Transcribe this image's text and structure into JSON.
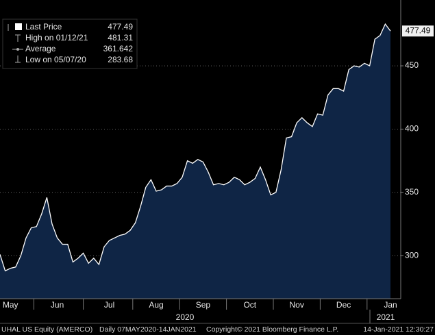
{
  "chart_data": {
    "type": "area",
    "categories": [
      null,
      null,
      "May",
      null,
      null,
      null,
      null,
      null,
      null,
      null,
      null,
      "Jun",
      null,
      null,
      null,
      null,
      null,
      null,
      null,
      null,
      null,
      "Jul",
      null,
      null,
      null,
      null,
      null,
      null,
      null,
      null,
      "Aug",
      null,
      null,
      null,
      null,
      null,
      null,
      null,
      null,
      "Sep",
      null,
      null,
      null,
      null,
      null,
      null,
      null,
      null,
      "Oct",
      null,
      null,
      null,
      null,
      null,
      null,
      null,
      null,
      "Nov",
      null,
      null,
      null,
      null,
      null,
      null,
      null,
      null,
      "Dec",
      null,
      null,
      null,
      null,
      null,
      null,
      null,
      null,
      "Jan"
    ],
    "series": [
      {
        "name": "Last Price",
        "color": "#ffffff",
        "fill": "#0f2545",
        "values": [
          301,
          288,
          290,
          291,
          300,
          314,
          322,
          323,
          333,
          346,
          325,
          314,
          309,
          309,
          295,
          298,
          302,
          294,
          298,
          293,
          307,
          312,
          314,
          316,
          317,
          320,
          326,
          339,
          354,
          360,
          351,
          352,
          355,
          355,
          357,
          362,
          375,
          373,
          376,
          374,
          366,
          356,
          357,
          356,
          358,
          362,
          360,
          356,
          358,
          361,
          370,
          360,
          348,
          350,
          368,
          393,
          394,
          405,
          409,
          405,
          402,
          412,
          411,
          427,
          432,
          432,
          430,
          447,
          450,
          449,
          452,
          450,
          471,
          474,
          483,
          477.49
        ]
      }
    ],
    "ylim": [
      266,
      502
    ],
    "yticks": [
      300,
      350,
      400,
      450
    ],
    "grid": true,
    "years": [
      "2020",
      "2021"
    ]
  },
  "legend": [
    {
      "label": "Last Price",
      "value": "477.49"
    },
    {
      "label": "High on 01/12/21",
      "value": "481.31"
    },
    {
      "label": "Average",
      "value": "361.642"
    },
    {
      "label": "Low on 05/07/20",
      "value": "283.68"
    }
  ],
  "footer": [
    "UHAL US Equity (AMERCO)",
    "Daily 07MAY2020-14JAN2021",
    "Copyright© 2021 Bloomberg Finance L.P.",
    "14-Jan-2021 12:30:27"
  ]
}
